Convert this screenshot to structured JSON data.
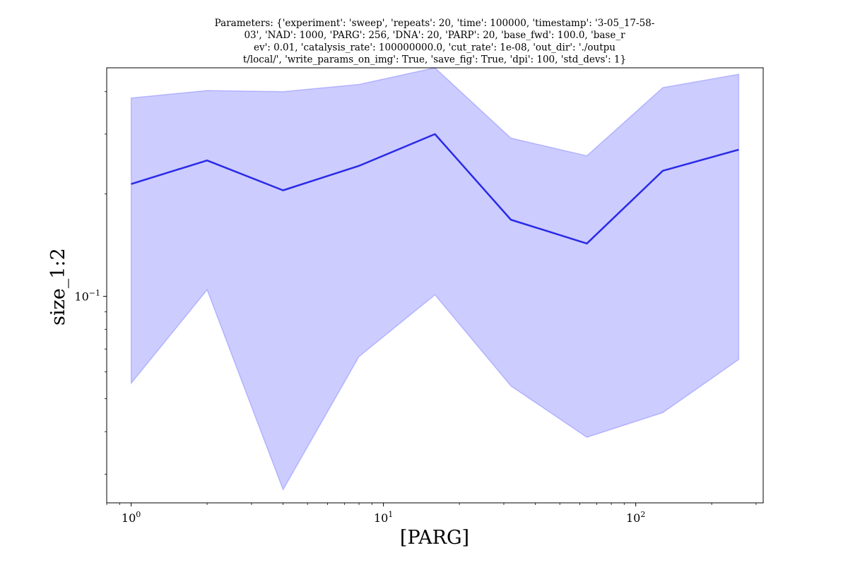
{
  "chart_data": {
    "type": "line",
    "title_lines": [
      "Parameters: {'experiment': 'sweep', 'repeats': 20, 'time': 100000, 'timestamp': '3-05_17-58-",
      "03', 'NAD': 1000, 'PARG': 256, 'DNA': 20, 'PARP': 20, 'base_fwd': 100.0, 'base_r",
      "ev': 0.01, 'catalysis_rate': 100000000.0, 'cut_rate': 1e-08, 'out_dir': './outpu",
      "t/local/', 'write_params_on_img': True, 'save_fig': True, 'dpi': 100, 'std_devs': 1}"
    ],
    "xlabel": "[PARG]",
    "ylabel": "size_1:2",
    "xscale": "log",
    "yscale": "log",
    "xlim": [
      0.8,
      320
    ],
    "ylim": [
      0.0247,
      0.47
    ],
    "x_major_ticks": [
      {
        "value": 1,
        "base": "10",
        "exp": "0"
      },
      {
        "value": 10,
        "base": "10",
        "exp": "1"
      },
      {
        "value": 100,
        "base": "10",
        "exp": "2"
      }
    ],
    "y_major_ticks": [
      {
        "value": 0.1,
        "base": "10",
        "exp": "−1"
      }
    ],
    "x_minor_ticks": [
      0.8,
      0.9,
      2,
      3,
      4,
      5,
      6,
      7,
      8,
      9,
      20,
      30,
      40,
      50,
      60,
      70,
      80,
      90,
      200,
      300
    ],
    "y_minor_ticks": [
      0.03,
      0.04,
      0.05,
      0.06,
      0.07,
      0.08,
      0.09,
      0.2,
      0.3,
      0.4
    ],
    "grid": false,
    "series": [
      {
        "color": "#2a2ae8",
        "band_color": "#0000ff",
        "x": [
          1,
          2,
          4,
          8,
          16,
          32,
          64,
          128,
          256
        ],
        "mean": [
          0.214,
          0.251,
          0.205,
          0.242,
          0.3,
          0.168,
          0.143,
          0.234,
          0.27
        ],
        "upper": [
          0.383,
          0.403,
          0.4,
          0.42,
          0.47,
          0.292,
          0.259,
          0.411,
          0.45
        ],
        "lower": [
          0.0555,
          0.1045,
          0.027,
          0.0665,
          0.101,
          0.0545,
          0.0385,
          0.0455,
          0.0652
        ]
      }
    ]
  }
}
